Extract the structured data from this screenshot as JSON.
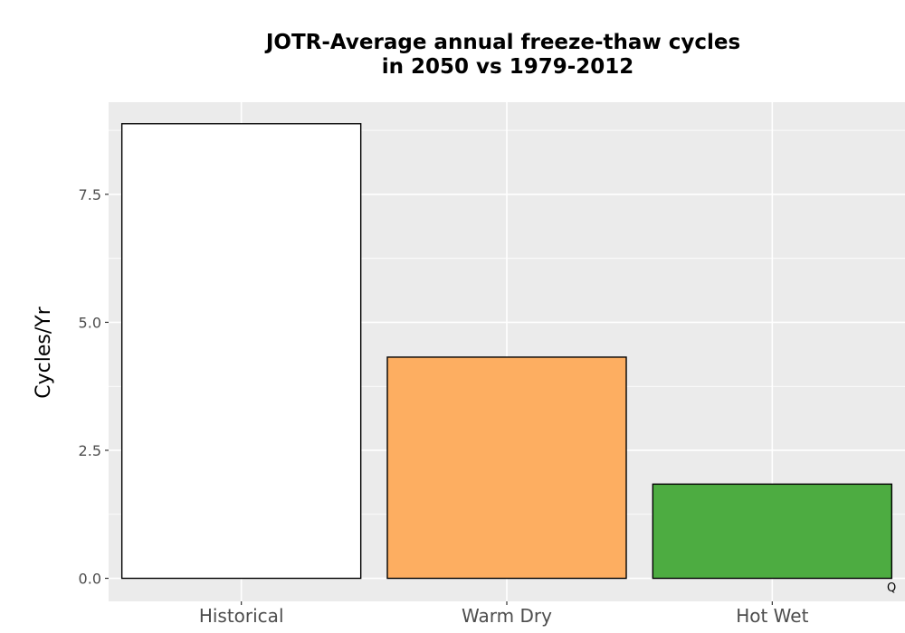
{
  "chart_data": {
    "type": "bar",
    "title_line1": "JOTR-Average annual freeze-thaw cycles",
    "title_line2": "in 2050 vs 1979-2012",
    "xlabel": "",
    "ylabel": "Cycles/Yr",
    "categories": [
      "Historical",
      "Warm Dry",
      "Hot Wet"
    ],
    "values": [
      8.88,
      4.32,
      1.84
    ],
    "colors": [
      "#ffffff",
      "#fdae61",
      "#4dac41"
    ],
    "bar_outline_color": "#000000",
    "ylim": [
      -0.45,
      9.3
    ],
    "yticks": [
      0.0,
      2.5,
      5.0,
      7.5
    ],
    "ytick_labels": [
      "0.0",
      "2.5",
      "5.0",
      "7.5"
    ],
    "grid": true,
    "panel_background": "#ebebeb",
    "grid_color": "#ffffff",
    "legend": "none",
    "corner_mark": "Q"
  }
}
